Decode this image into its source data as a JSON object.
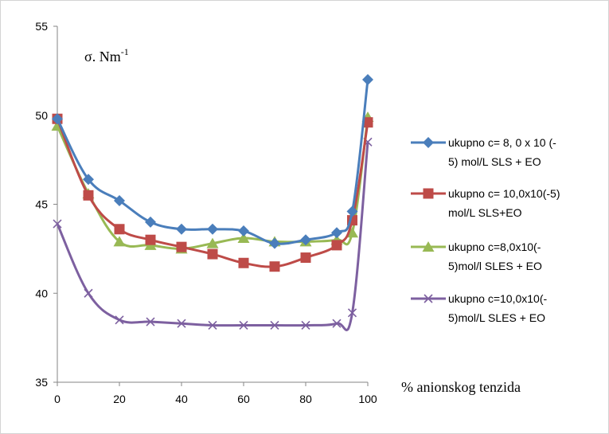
{
  "chart_data": {
    "type": "line",
    "title": "",
    "y_axis_annotation": {
      "base": "σ. Nm",
      "sup": "-1"
    },
    "x_axis_annotation": "% anionskog tenzida",
    "xlim": [
      0,
      100
    ],
    "ylim": [
      35,
      55
    ],
    "x_ticks": [
      "0",
      "20",
      "40",
      "60",
      "80",
      "100"
    ],
    "y_ticks": [
      "35",
      "40",
      "45",
      "50",
      "55"
    ],
    "grid": false,
    "legend_position": "right",
    "x": [
      0,
      10,
      20,
      30,
      40,
      50,
      60,
      70,
      80,
      90,
      95,
      100
    ],
    "series": [
      {
        "name_lines": [
          "ukupno c= 8,  0 x 10 (-",
          "5) mol/L SLS + EO"
        ],
        "color": "#4a7ebb",
        "marker": "diamond",
        "values": [
          49.8,
          46.4,
          45.2,
          44.0,
          43.6,
          43.6,
          43.5,
          42.8,
          43.0,
          43.4,
          44.6,
          52.0
        ]
      },
      {
        "name_lines": [
          "ukupno c= 10,0x10(-5)",
          "mol/L SLS+EO"
        ],
        "color": "#be4b48",
        "marker": "square",
        "values": [
          49.8,
          45.5,
          43.6,
          43.0,
          42.6,
          42.2,
          41.7,
          41.5,
          42.0,
          42.7,
          44.1,
          49.6
        ]
      },
      {
        "name_lines": [
          "ukupno c=8,0x10(-",
          "5)mol/l SLES + EO"
        ],
        "color": "#98b954",
        "marker": "triangle",
        "values": [
          49.4,
          45.6,
          42.9,
          42.7,
          42.5,
          42.8,
          43.1,
          42.9,
          42.9,
          43.0,
          43.4,
          49.9
        ]
      },
      {
        "name_lines": [
          "ukupno c=10,0x10(-",
          "5)mol/L SLES + EO"
        ],
        "color": "#7d60a0",
        "marker": "x",
        "values": [
          43.9,
          40.0,
          38.5,
          38.4,
          38.3,
          38.2,
          38.2,
          38.2,
          38.2,
          38.3,
          38.9,
          48.5
        ]
      }
    ]
  }
}
